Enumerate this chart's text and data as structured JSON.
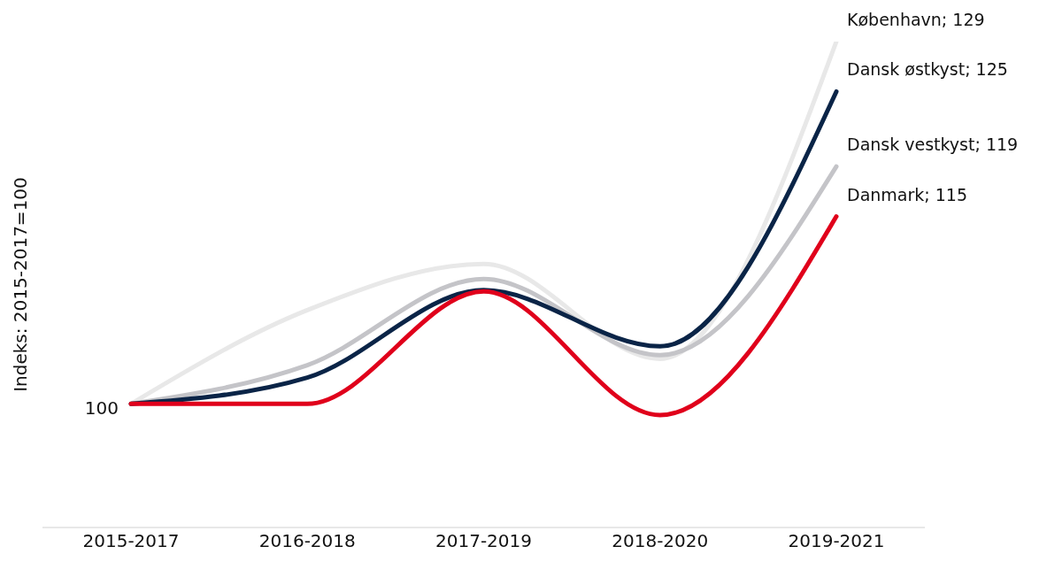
{
  "chart_data": {
    "type": "line",
    "ylabel": "Indeks: 2015-2017=100",
    "categories": [
      "2015-2017",
      "2016-2018",
      "2017-2019",
      "2018-2020",
      "2019-2021"
    ],
    "series": [
      {
        "color": "#e8e8e8",
        "values": [
          100,
          107.5,
          111.2,
          103.6,
          129
        ],
        "value_labels": [
          null,
          null,
          null,
          null,
          "København; 129"
        ]
      },
      {
        "color": "#c4c4c8",
        "values": [
          100,
          103.1,
          110.0,
          103.9,
          119
        ],
        "value_labels": [
          null,
          null,
          null,
          null,
          "Dansk vestkyst; 119"
        ]
      },
      {
        "color": "#0a2447",
        "values": [
          100,
          102.1,
          109.1,
          104.6,
          125
        ],
        "value_labels": [
          null,
          null,
          null,
          null,
          "Dansk østkyst; 125"
        ]
      },
      {
        "color": "#e0001b",
        "values": [
          100,
          100.0,
          109.0,
          99.1,
          115
        ],
        "value_labels": [
          null,
          null,
          null,
          null,
          "Danmark; 115"
        ]
      }
    ],
    "annotations": [
      {
        "text": "100",
        "x": "2015-2017",
        "y": 100
      }
    ],
    "grid": false,
    "legend": false,
    "marker": "none",
    "line_style": "solid"
  }
}
